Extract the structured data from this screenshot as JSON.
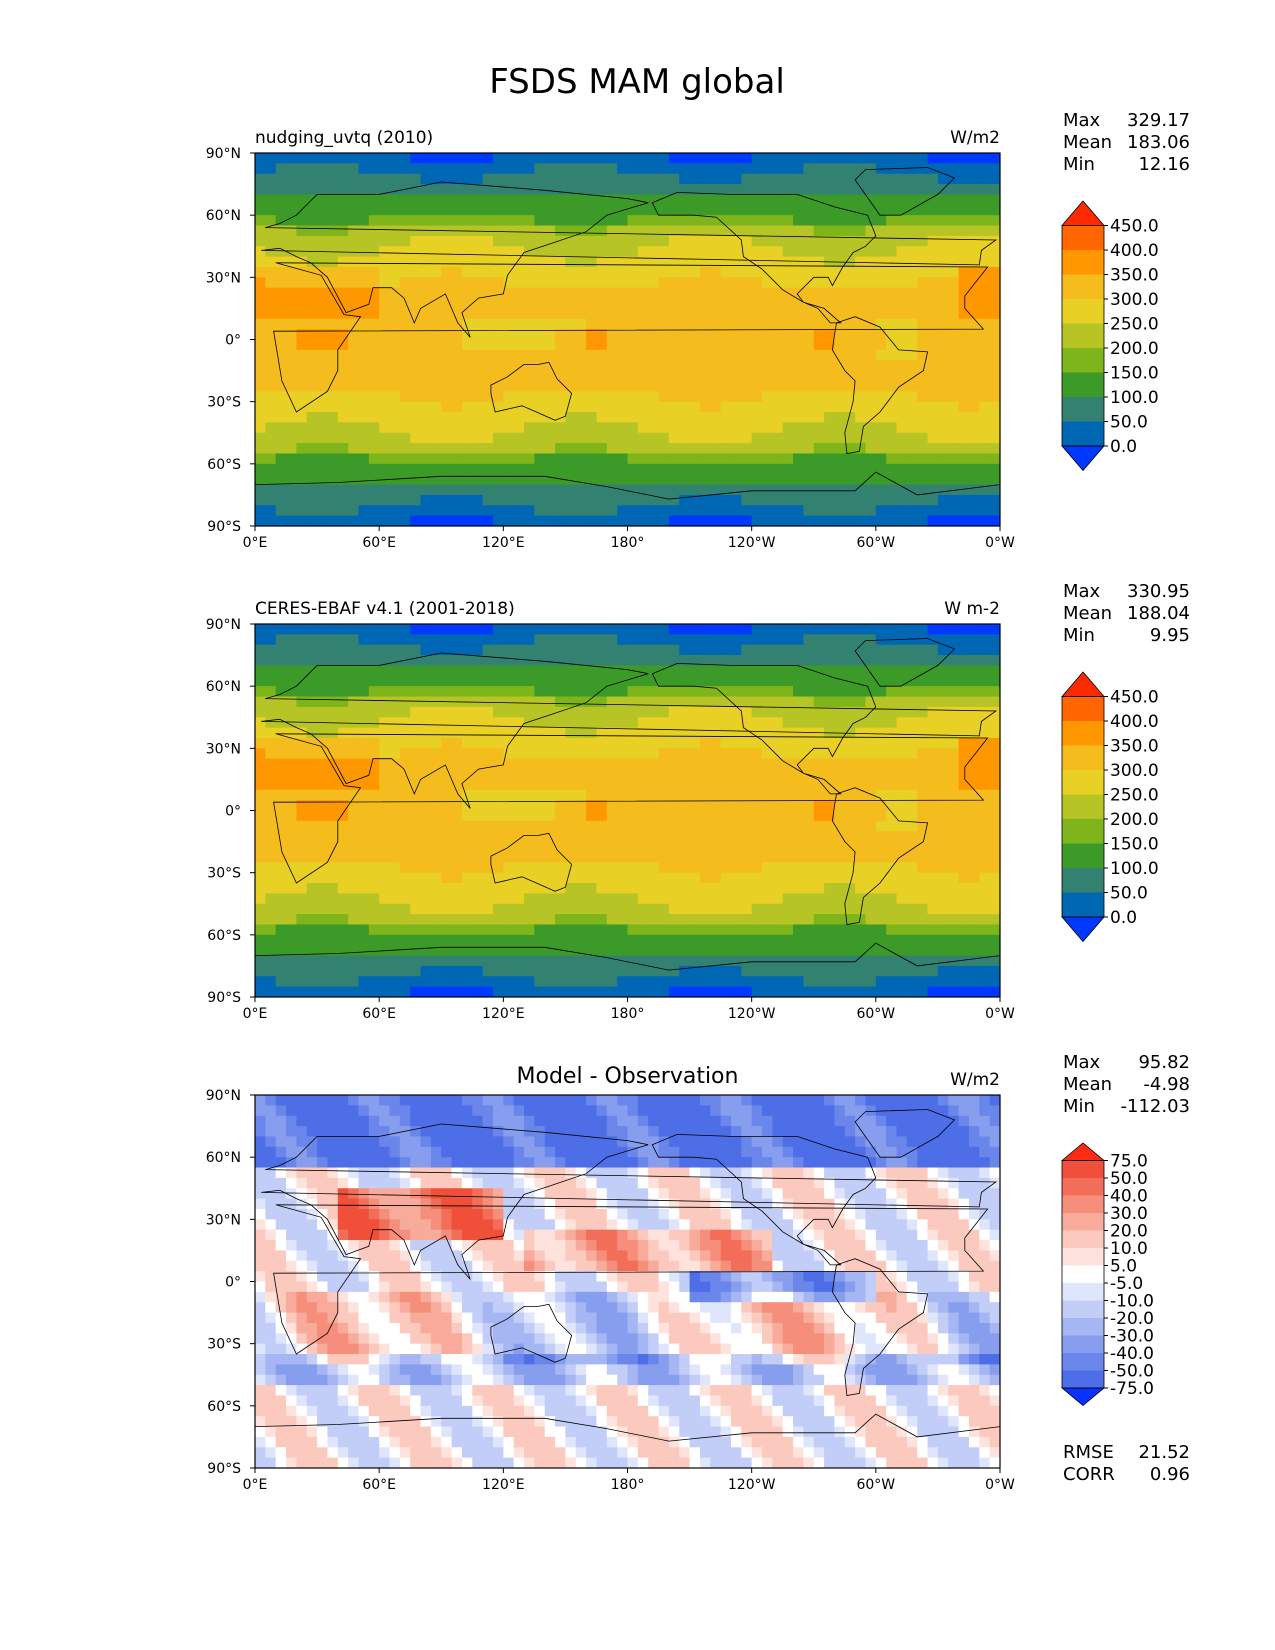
{
  "title": "FSDS MAM global",
  "chart_data": {
    "type": "heatmap",
    "title": "FSDS MAM global",
    "x_ticks": [
      "0°E",
      "60°E",
      "120°E",
      "180°",
      "120°W",
      "60°W",
      "0°W"
    ],
    "y_ticks": [
      "90°N",
      "60°N",
      "30°N",
      "0°",
      "30°S",
      "60°S",
      "90°S"
    ],
    "panels": [
      {
        "id": "test",
        "left_title": "nudging_uvtq (2010)",
        "center_title": "",
        "units": "W/m2",
        "stats": [
          {
            "label": "Max",
            "value": "329.17"
          },
          {
            "label": "Mean",
            "value": "183.06"
          },
          {
            "label": "Min",
            "value": "12.16"
          }
        ],
        "colorbar": {
          "levels": [
            "450.0",
            "400.0",
            "350.0",
            "300.0",
            "250.0",
            "200.0",
            "150.0",
            "100.0",
            "50.0",
            "0.0"
          ],
          "colors": [
            "#ff2a00",
            "#ff6500",
            "#ff9800",
            "#f5bc1e",
            "#e8d024",
            "#b6c425",
            "#7db51a",
            "#3c9a28",
            "#338271",
            "#0067b4",
            "#0038ff"
          ],
          "extend": "both"
        },
        "field_scale": "sequential"
      },
      {
        "id": "ref",
        "left_title": "CERES-EBAF v4.1 (2001-2018)",
        "center_title": "",
        "units": "W m-2",
        "stats": [
          {
            "label": "Max",
            "value": "330.95"
          },
          {
            "label": "Mean",
            "value": "188.04"
          },
          {
            "label": "Min",
            "value": "9.95"
          }
        ],
        "colorbar": {
          "levels": [
            "450.0",
            "400.0",
            "350.0",
            "300.0",
            "250.0",
            "200.0",
            "150.0",
            "100.0",
            "50.0",
            "0.0"
          ],
          "colors": [
            "#ff2a00",
            "#ff6500",
            "#ff9800",
            "#f5bc1e",
            "#e8d024",
            "#b6c425",
            "#7db51a",
            "#3c9a28",
            "#338271",
            "#0067b4",
            "#0038ff"
          ],
          "extend": "both"
        },
        "field_scale": "sequential"
      },
      {
        "id": "diff",
        "left_title": "",
        "center_title": "Model - Observation",
        "units": "W/m2",
        "stats": [
          {
            "label": "Max",
            "value": "95.82"
          },
          {
            "label": "Mean",
            "value": "-4.98"
          },
          {
            "label": "Min",
            "value": "-112.03"
          }
        ],
        "colorbar": {
          "levels": [
            "75.0",
            "50.0",
            "40.0",
            "30.0",
            "20.0",
            "10.0",
            "5.0",
            "-5.0",
            "-10.0",
            "-20.0",
            "-30.0",
            "-40.0",
            "-50.0",
            "-75.0"
          ],
          "colors": [
            "#ff2b14",
            "#f0503a",
            "#f26e58",
            "#f58e7a",
            "#f8ab9b",
            "#fbc9be",
            "#fde3dc",
            "#ffffff",
            "#dfe6fb",
            "#c2cef7",
            "#a5b6f3",
            "#879eef",
            "#6a86eb",
            "#4d6ee7",
            "#0a32ff"
          ],
          "extend": "both"
        },
        "field_scale": "diverging",
        "extra_stats": [
          {
            "label": "RMSE",
            "value": "21.52"
          },
          {
            "label": "CORR",
            "value": "0.96"
          }
        ]
      }
    ]
  }
}
